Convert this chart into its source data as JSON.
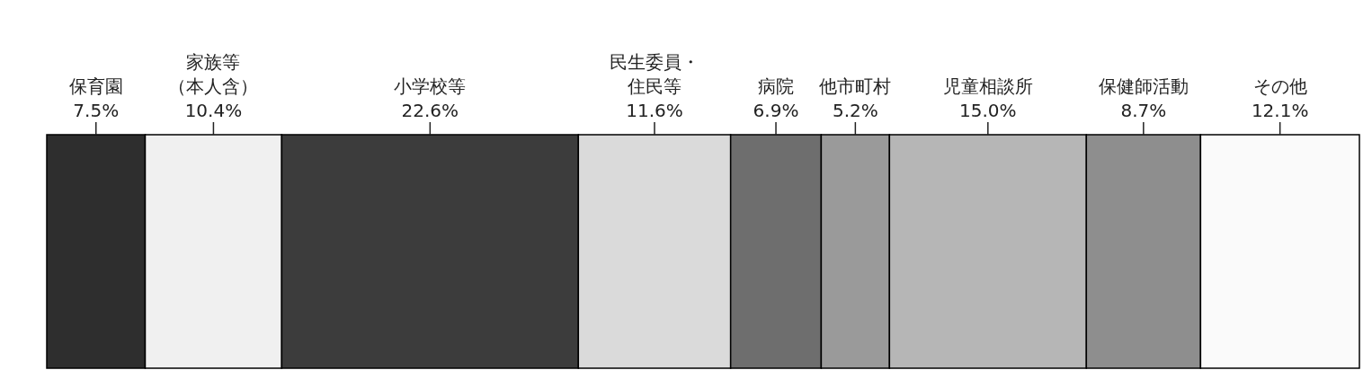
{
  "chart_data": {
    "type": "bar",
    "orientation": "horizontal",
    "stacked": true,
    "categories": [
      null
    ],
    "xlim": [
      0,
      100
    ],
    "series": [
      {
        "name": "保育園",
        "color": "#2e2e2e",
        "values": [
          7.5
        ],
        "value_labels": [
          "7.5%"
        ]
      },
      {
        "name": "家族等（本人含）",
        "color": "#f0f0f0",
        "values": [
          10.4
        ],
        "value_labels": [
          "10.4%"
        ]
      },
      {
        "name": "小学校等",
        "color": "#3c3c3c",
        "values": [
          22.6
        ],
        "value_labels": [
          "22.6%"
        ]
      },
      {
        "name": "民生委員・住民等",
        "color": "#dadada",
        "values": [
          11.6
        ],
        "value_labels": [
          "11.6%"
        ]
      },
      {
        "name": "病院",
        "color": "#6e6e6e",
        "values": [
          6.9
        ],
        "value_labels": [
          "6.9%"
        ]
      },
      {
        "name": "他市町村",
        "color": "#9a9a9a",
        "values": [
          5.2
        ],
        "value_labels": [
          "5.2%"
        ]
      },
      {
        "name": "児童相談所",
        "color": "#b6b6b6",
        "values": [
          15.0
        ],
        "value_labels": [
          "15.0%"
        ]
      },
      {
        "name": "保健師活動",
        "color": "#8e8e8e",
        "values": [
          8.7
        ],
        "value_labels": [
          "8.7%"
        ]
      },
      {
        "name": "その他",
        "color": "#fafafa",
        "values": [
          12.1
        ],
        "value_labels": [
          "12.1%"
        ]
      }
    ]
  }
}
